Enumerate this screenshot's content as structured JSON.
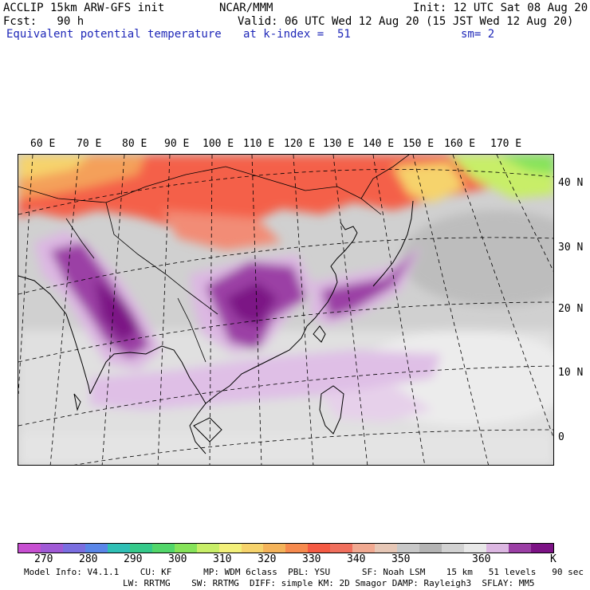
{
  "header": {
    "model_name": "ACCLIP 15km ARW-GFS init",
    "org": "NCAR/MMM",
    "init": "Init: 12 UTC Sat 08 Aug 20",
    "fcst": "Fcst:   90 h",
    "valid": "Valid: 06 UTC Wed 12 Aug 20 (15 JST Wed 12 Aug 20)",
    "field": "Equivalent potential temperature",
    "level": "at k-index =  51",
    "smoothing": "sm= 2"
  },
  "map": {
    "lon_labels": [
      "60 E",
      "70 E",
      "80 E",
      "90 E",
      "100 E",
      "110 E",
      "120 E",
      "130 E",
      "140 E",
      "150 E",
      "160 E",
      "170 E"
    ],
    "lat_labels": [
      "40 N",
      "30 N",
      "20 N",
      "10 N",
      "0"
    ]
  },
  "legend": {
    "colors": [
      "#c74fd1",
      "#a05ad6",
      "#7a6ee0",
      "#5a86e8",
      "#2fbfb5",
      "#35c98a",
      "#52d66a",
      "#86e35a",
      "#c8ee68",
      "#f3f07a",
      "#f6d36c",
      "#f4b35a",
      "#f68a4e",
      "#f45a43",
      "#f06f5d",
      "#f1a991",
      "#e6c7b6",
      "#c8c8c8",
      "#b4b4b4",
      "#d2d2d2",
      "#e8e8e8",
      "#dcb7e2",
      "#9b3fa5",
      "#7c1285"
    ],
    "labels": [
      "270",
      "280",
      "290",
      "300",
      "310",
      "320",
      "330",
      "340",
      "350",
      "360",
      "K"
    ]
  },
  "footer": {
    "line1": "Model Info: V4.1.1    CU: KF      MP: WDM 6class  PBL: YSU      SF: Noah LSM    15 km   51 levels   90 sec",
    "line2": "LW: RRTMG    SW: RRTMG  DIFF: simple KM: 2D Smagor DAMP: Rayleigh3  SFLAY: MM5"
  }
}
